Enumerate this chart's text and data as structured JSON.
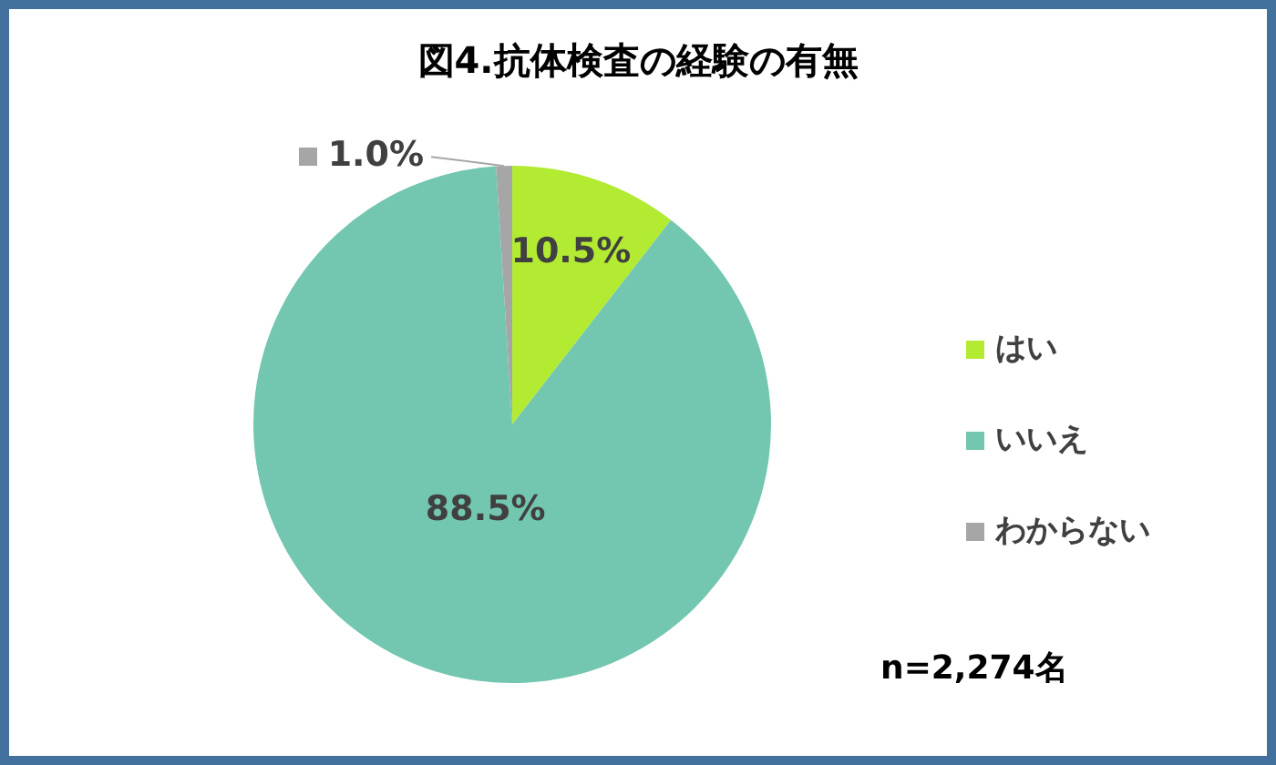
{
  "chart_data": {
    "type": "pie",
    "title": "図4.抗体検査の経験の有無",
    "categories": [
      "はい",
      "いいえ",
      "わからない"
    ],
    "values": [
      10.5,
      88.5,
      1.0
    ],
    "value_labels": [
      "10.5%",
      "88.5%",
      "1.0%"
    ],
    "colors": [
      "#b3eb32",
      "#73c6b0",
      "#a6a6a6"
    ],
    "legend": "right",
    "annotations": [
      "n=2,274名"
    ]
  }
}
